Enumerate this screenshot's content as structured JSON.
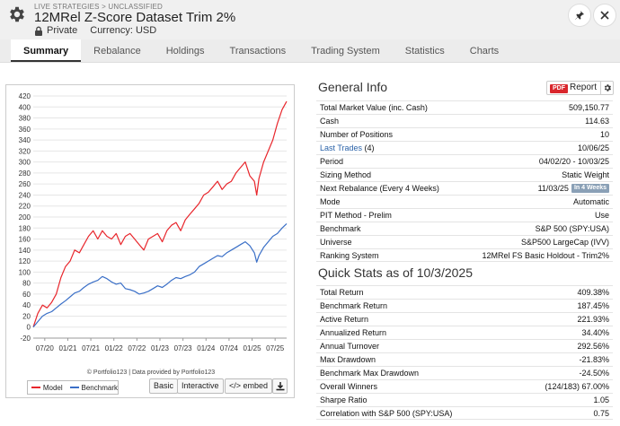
{
  "header": {
    "breadcrumb": "LIVE STRATEGIES > UNCLASSIFIED",
    "title": "12MRel Z-Score Dataset Trim 2%",
    "visibility": "Private",
    "currency": "Currency: USD"
  },
  "tabs": [
    {
      "label": "Summary",
      "active": true
    },
    {
      "label": "Rebalance"
    },
    {
      "label": "Holdings"
    },
    {
      "label": "Transactions"
    },
    {
      "label": "Trading System"
    },
    {
      "label": "Statistics"
    },
    {
      "label": "Charts"
    }
  ],
  "general_info": {
    "title": "General Info",
    "report_badge": "PDF",
    "report_label": "Report",
    "rows": [
      {
        "k": "Total Market Value (inc. Cash)",
        "v": "509,150.77"
      },
      {
        "k": "Cash",
        "v": "114.63"
      },
      {
        "k": "Number of Positions",
        "v": "10"
      },
      {
        "k": "Last Trades",
        "k2": " (4)",
        "v": "10/06/25"
      },
      {
        "k": "Period",
        "v": "04/02/20 - 10/03/25"
      },
      {
        "k": "Sizing Method",
        "v": "Static Weight"
      },
      {
        "k": "Next Rebalance (Every 4 Weeks)",
        "v": "11/03/25",
        "badge": "In 4 Weeks"
      },
      {
        "k": "Mode",
        "v": "Automatic"
      },
      {
        "k": "PIT Method - Prelim",
        "v": "Use"
      },
      {
        "k": "Benchmark",
        "v": "S&P 500 (SPY:USA)"
      },
      {
        "k": "Universe",
        "v": "S&P500 LargeCap (IVV)"
      },
      {
        "k": "Ranking System",
        "v": "12MRel FS Basic Holdout - Trim2%"
      }
    ]
  },
  "quick_stats": {
    "title": "Quick Stats as of 10/3/2025",
    "rows": [
      {
        "k": "Total Return",
        "v": "409.38%"
      },
      {
        "k": "Benchmark Return",
        "v": "187.45%"
      },
      {
        "k": "Active Return",
        "v": "221.93%"
      },
      {
        "k": "Annualized Return",
        "v": "34.40%"
      },
      {
        "k": "Annual Turnover",
        "v": "292.56%"
      },
      {
        "k": "Max Drawdown",
        "v": "-21.83%"
      },
      {
        "k": "Benchmark Max Drawdown",
        "v": "-24.50%"
      },
      {
        "k": "Overall Winners",
        "v": "(124/183) 67.00%"
      },
      {
        "k": "Sharpe Ratio",
        "v": "1.05"
      },
      {
        "k": "Correlation with S&P 500 (SPY:USA)",
        "v": "0.75"
      }
    ]
  },
  "chart_footer": {
    "credit": "© Portfolio123 | Data provided by Portfolio123",
    "basic_label": "Basic",
    "interactive_label": "Interactive",
    "embed_label": "</> embed"
  },
  "chart_data": {
    "type": "line",
    "ylim": [
      -20,
      420
    ],
    "yticks": [
      -20,
      0,
      20,
      40,
      60,
      80,
      100,
      120,
      140,
      160,
      180,
      200,
      220,
      240,
      260,
      280,
      300,
      320,
      340,
      360,
      380,
      400,
      420
    ],
    "x_tick_labels": [
      "07/20",
      "01/21",
      "07/21",
      "01/22",
      "07/22",
      "01/23",
      "07/23",
      "01/24",
      "07/24",
      "01/25",
      "07/25"
    ],
    "x_tick_positions": [
      0.25,
      0.75,
      1.25,
      1.75,
      2.25,
      2.75,
      3.25,
      3.75,
      4.25,
      4.75,
      5.25
    ],
    "x_range": [
      0,
      5.5
    ],
    "series": [
      {
        "name": "Model",
        "color": "#e8262c",
        "x": [
          0,
          0.1,
          0.2,
          0.3,
          0.4,
          0.5,
          0.6,
          0.7,
          0.8,
          0.9,
          1.0,
          1.1,
          1.2,
          1.3,
          1.4,
          1.5,
          1.6,
          1.7,
          1.8,
          1.9,
          2.0,
          2.1,
          2.2,
          2.3,
          2.4,
          2.5,
          2.6,
          2.7,
          2.8,
          2.9,
          3.0,
          3.1,
          3.2,
          3.3,
          3.4,
          3.5,
          3.6,
          3.7,
          3.8,
          3.9,
          4.0,
          4.1,
          4.2,
          4.3,
          4.4,
          4.5,
          4.6,
          4.7,
          4.8,
          4.85,
          4.9,
          5.0,
          5.1,
          5.2,
          5.3,
          5.4,
          5.5
        ],
        "values": [
          0,
          25,
          40,
          35,
          45,
          60,
          90,
          110,
          120,
          140,
          135,
          150,
          165,
          175,
          160,
          175,
          165,
          160,
          170,
          150,
          165,
          170,
          160,
          150,
          140,
          160,
          165,
          170,
          155,
          175,
          185,
          190,
          175,
          195,
          205,
          215,
          225,
          240,
          245,
          255,
          265,
          250,
          260,
          265,
          280,
          290,
          300,
          275,
          265,
          240,
          270,
          300,
          320,
          340,
          370,
          395,
          410
        ]
      },
      {
        "name": "Benchmark",
        "color": "#3a6fc7",
        "x": [
          0,
          0.1,
          0.2,
          0.3,
          0.4,
          0.5,
          0.6,
          0.7,
          0.8,
          0.9,
          1.0,
          1.1,
          1.2,
          1.3,
          1.4,
          1.5,
          1.6,
          1.7,
          1.8,
          1.9,
          2.0,
          2.1,
          2.2,
          2.3,
          2.4,
          2.5,
          2.6,
          2.7,
          2.8,
          2.9,
          3.0,
          3.1,
          3.2,
          3.3,
          3.4,
          3.5,
          3.6,
          3.7,
          3.8,
          3.9,
          4.0,
          4.1,
          4.2,
          4.3,
          4.4,
          4.5,
          4.6,
          4.7,
          4.8,
          4.85,
          4.9,
          5.0,
          5.1,
          5.2,
          5.3,
          5.4,
          5.5
        ],
        "values": [
          0,
          10,
          20,
          25,
          28,
          35,
          42,
          48,
          55,
          62,
          65,
          72,
          78,
          82,
          85,
          92,
          88,
          82,
          78,
          80,
          70,
          68,
          65,
          60,
          62,
          65,
          70,
          75,
          72,
          78,
          85,
          90,
          88,
          92,
          95,
          100,
          110,
          115,
          120,
          125,
          130,
          128,
          135,
          140,
          145,
          150,
          155,
          148,
          135,
          118,
          130,
          145,
          155,
          165,
          170,
          180,
          188
        ]
      }
    ]
  }
}
